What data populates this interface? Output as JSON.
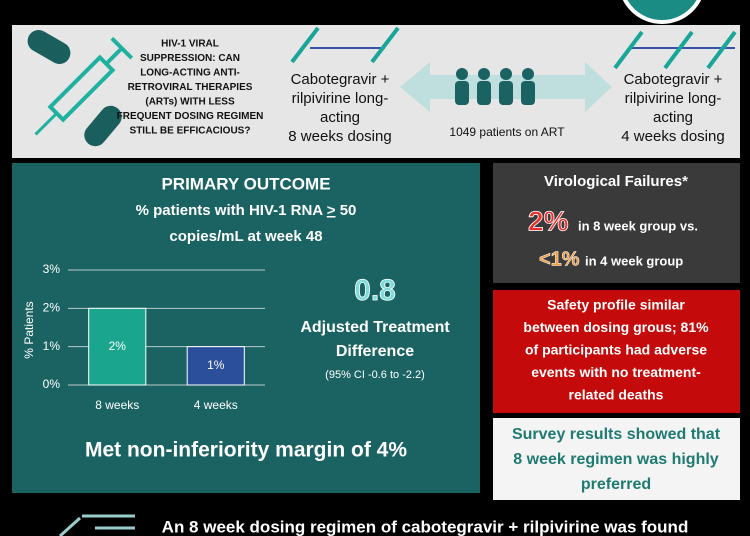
{
  "header": {
    "question": [
      "HIV-1 VIRAL",
      "SUPPRESSION: CAN",
      "LONG-ACTING ANTI-",
      "RETROVIRAL THERAPIES",
      "(ARTs) WITH LESS",
      "FREQUENT DOSING REGIMEN",
      "STILL BE EFFICACIOUS?"
    ],
    "left_arm": [
      "Cabotegravir +",
      "rilpivirine long-",
      "acting",
      "8 weeks dosing"
    ],
    "patients": "1049 patients on ART",
    "right_arm": [
      "Cabotegravir +",
      "rilpivirine long-",
      "acting",
      "4 weeks dosing"
    ]
  },
  "outcome": {
    "title": "PRIMARY OUTCOME",
    "subtitle": [
      "% patients with HIV-1 RNA",
      ">",
      "50",
      "copies/mL at week 48"
    ],
    "difference": "0.8",
    "difference_label": [
      "Adjusted Treatment",
      "Difference"
    ],
    "ci": "(95% CI -0.6 to -2.2)",
    "conclusion": "Met non-inferiority margin of 4%"
  },
  "chart_data": {
    "type": "bar",
    "categories": [
      "8 weeks",
      "4 weeks"
    ],
    "values": [
      2,
      1
    ],
    "value_labels": [
      "2%",
      "1%"
    ],
    "colors": [
      "#1aa68e",
      "#2c4f9c"
    ],
    "y_label": "% Patients",
    "ylim": [
      0,
      3
    ],
    "yticks": [
      {
        "value": 0,
        "label": "0%"
      },
      {
        "value": 1,
        "label": "1%"
      },
      {
        "value": 2,
        "label": "2%"
      },
      {
        "value": 3,
        "label": "3%"
      }
    ],
    "grid": true
  },
  "failures": {
    "title": "Virological Failures*",
    "rate_8": "2%",
    "text_8": "in 8 week group vs.",
    "rate_4": "<1%",
    "text_4": "in 4 week group"
  },
  "safety": [
    "Safety profile similar",
    "between dosing grous; 81%",
    "of participants had adverse",
    "events with no treatment-",
    "related deaths"
  ],
  "survey": [
    "Survey results showed that",
    "8 week regimen was highly",
    "preferred"
  ],
  "footer": "An 8 week dosing regimen of cabotegravir + rilpivirine was found"
}
